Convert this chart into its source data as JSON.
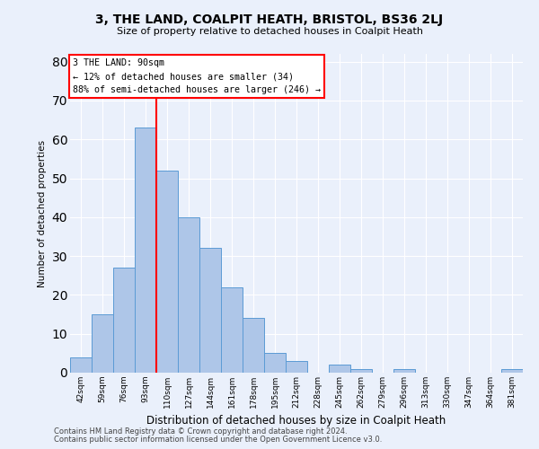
{
  "title": "3, THE LAND, COALPIT HEATH, BRISTOL, BS36 2LJ",
  "subtitle": "Size of property relative to detached houses in Coalpit Heath",
  "xlabel": "Distribution of detached houses by size in Coalpit Heath",
  "ylabel": "Number of detached properties",
  "footnote1": "Contains HM Land Registry data © Crown copyright and database right 2024.",
  "footnote2": "Contains public sector information licensed under the Open Government Licence v3.0.",
  "bar_labels": [
    "42sqm",
    "59sqm",
    "76sqm",
    "93sqm",
    "110sqm",
    "127sqm",
    "144sqm",
    "161sqm",
    "178sqm",
    "195sqm",
    "212sqm",
    "228sqm",
    "245sqm",
    "262sqm",
    "279sqm",
    "296sqm",
    "313sqm",
    "330sqm",
    "347sqm",
    "364sqm",
    "381sqm"
  ],
  "bar_values": [
    4,
    15,
    27,
    63,
    52,
    40,
    32,
    22,
    14,
    5,
    3,
    0,
    2,
    1,
    0,
    1,
    0,
    0,
    0,
    0,
    1
  ],
  "bar_color": "#aec6e8",
  "bar_edge_color": "#5b9bd5",
  "background_color": "#eaf0fb",
  "grid_color": "#ffffff",
  "vline_x_index": 3,
  "vline_color": "red",
  "annotation_text": "3 THE LAND: 90sqm\n← 12% of detached houses are smaller (34)\n88% of semi-detached houses are larger (246) →",
  "annotation_box_color": "white",
  "annotation_box_edge_color": "red",
  "ylim": [
    0,
    82
  ],
  "yticks": [
    0,
    10,
    20,
    30,
    40,
    50,
    60,
    70,
    80
  ]
}
